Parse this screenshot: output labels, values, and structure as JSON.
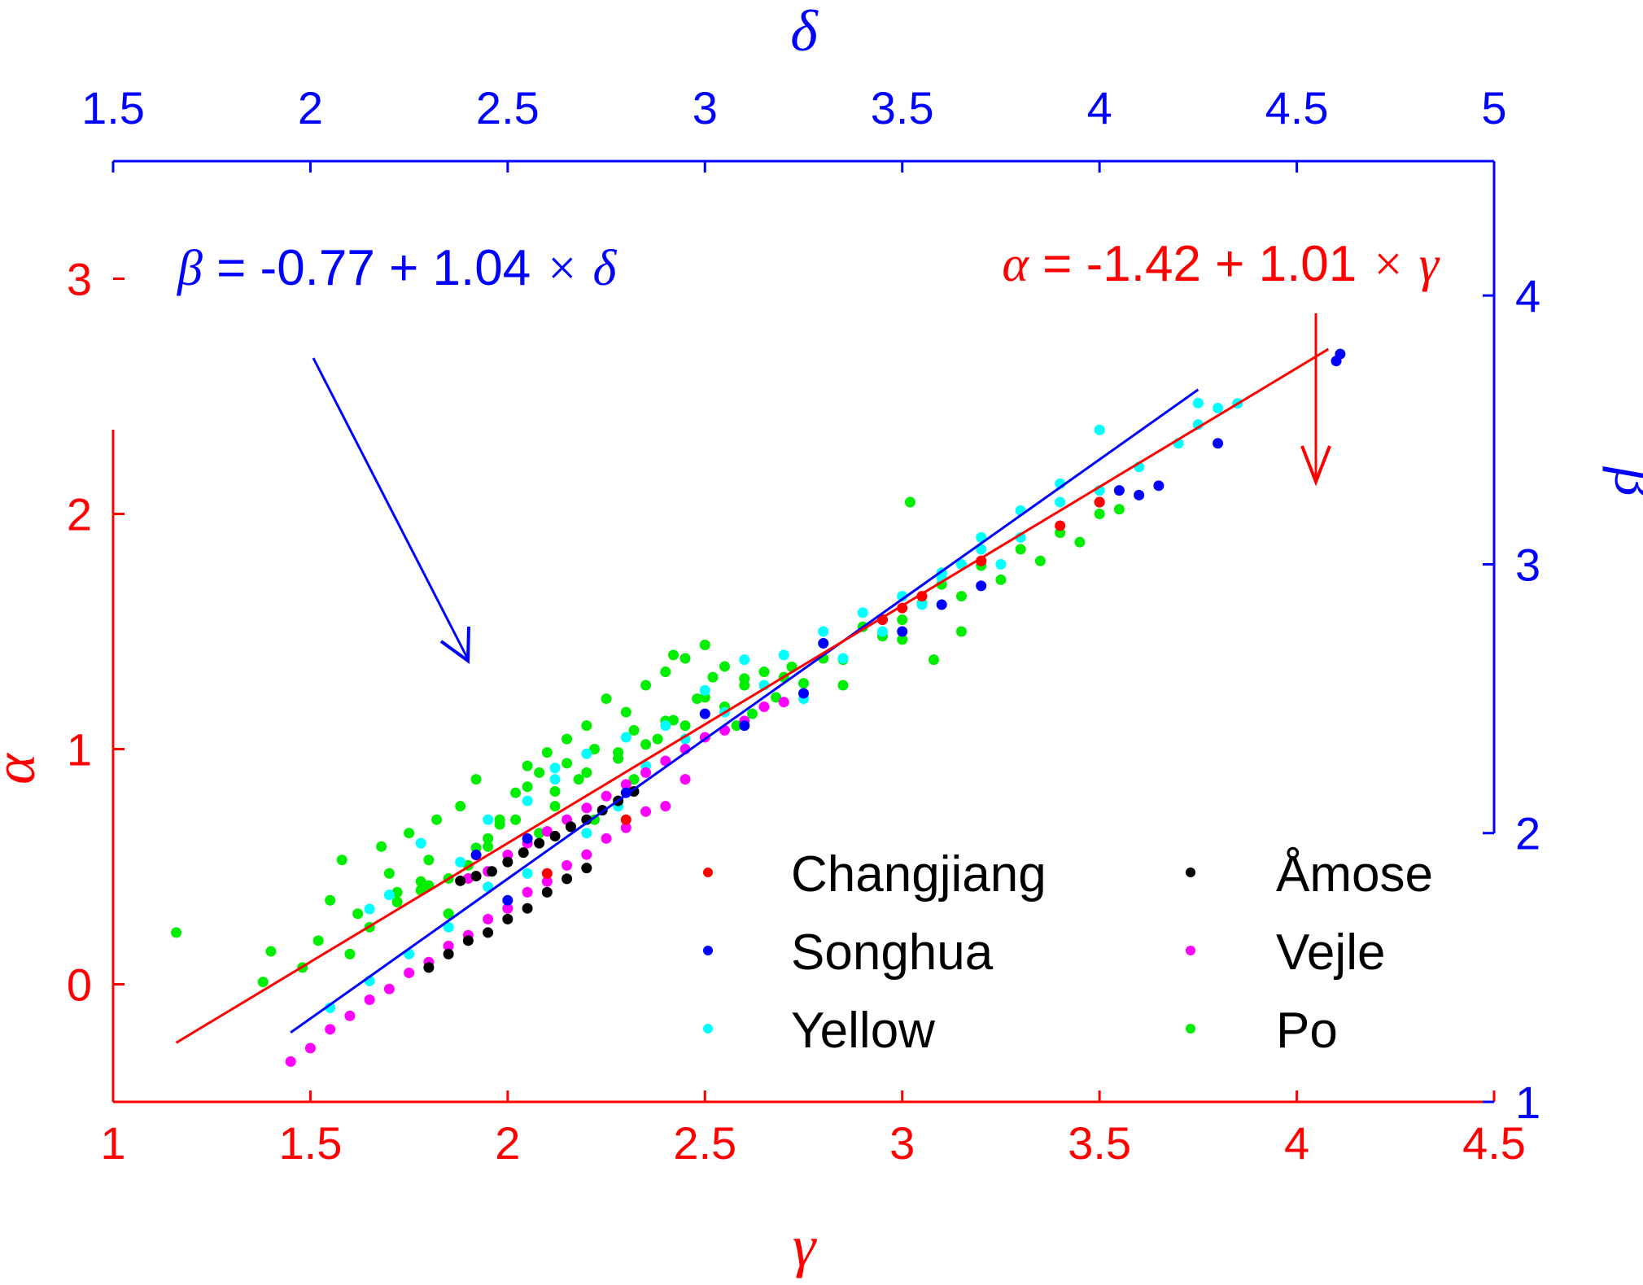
{
  "chart_data": {
    "type": "scatter",
    "colors": {
      "bottom_axis": "#ff0000",
      "top_axis": "#0000ff",
      "legend_text": "#000000"
    },
    "x_bottom": {
      "label": "γ",
      "range": [
        1,
        4.5
      ],
      "ticks": [
        1,
        1.5,
        2,
        2.5,
        3,
        3.5,
        4,
        4.5
      ],
      "tick_labels": [
        "1",
        "1.5",
        "2",
        "2.5",
        "3",
        "3.5",
        "4",
        "4.5"
      ]
    },
    "y_left": {
      "label": "α",
      "range": [
        -0.5,
        3.5
      ],
      "ticks": [
        0,
        1,
        2,
        3
      ],
      "tick_labels": [
        "0",
        "1",
        "2",
        "3"
      ]
    },
    "x_top": {
      "label": "δ",
      "range": [
        1.5,
        5
      ],
      "ticks": [
        1.5,
        2,
        2.5,
        3,
        3.5,
        4,
        4.5,
        5
      ],
      "tick_labels": [
        "1.5",
        "2",
        "2.5",
        "3",
        "3.5",
        "4",
        "4.5",
        "5"
      ]
    },
    "y_right": {
      "label": "β",
      "range": [
        1,
        4.5
      ],
      "ticks": [
        1,
        2,
        3,
        4
      ],
      "tick_labels": [
        "1",
        "2",
        "3",
        "4"
      ]
    },
    "fits": [
      {
        "axes": "top-right",
        "equation_parts": {
          "lhs": "β",
          "mid": " = -0.77 + 1.04 ",
          "times": "×",
          "var": "δ"
        },
        "intercept": -0.77,
        "slope": 1.04,
        "x_range": [
          1.95,
          4.25
        ],
        "color": "#0000ff"
      },
      {
        "axes": "bottom-left",
        "equation_parts": {
          "lhs": "α",
          "mid": " = -1.42 + 1.01 ",
          "times": "×",
          "var": "γ"
        },
        "intercept": -1.42,
        "slope": 1.01,
        "x_range": [
          1.16,
          4.08
        ],
        "color": "#ff0000"
      }
    ],
    "legend": {
      "placement": "bottom-right",
      "columns": 2,
      "entries": [
        {
          "name": "Changjiang",
          "color": "#ff0000"
        },
        {
          "name": "Songhua",
          "color": "#0000ff"
        },
        {
          "name": "Yellow",
          "color": "#00ffff"
        },
        {
          "name": "Åmose",
          "color": "#000000"
        },
        {
          "name": "Vejle",
          "color": "#ff00ff"
        },
        {
          "name": "Po",
          "color": "#00ee00"
        }
      ]
    },
    "series": [
      {
        "name": "Po",
        "color": "#00ee00",
        "alpha_gamma": [
          [
            1.16,
            0.22
          ],
          [
            1.38,
            0.01
          ],
          [
            1.4,
            0.14
          ],
          [
            1.72,
            0.35
          ],
          [
            1.78,
            0.4
          ],
          [
            1.8,
            0.42
          ],
          [
            1.85,
            0.45
          ],
          [
            1.92,
            0.58
          ],
          [
            1.95,
            0.62
          ],
          [
            1.98,
            0.68
          ],
          [
            2.02,
            0.7
          ],
          [
            2.05,
            0.84
          ],
          [
            2.08,
            0.9
          ],
          [
            2.12,
            0.82
          ],
          [
            2.15,
            0.94
          ],
          [
            2.2,
            0.9
          ],
          [
            2.22,
            1.0
          ],
          [
            2.28,
            0.96
          ],
          [
            2.32,
            1.08
          ],
          [
            2.35,
            1.02
          ],
          [
            2.4,
            1.12
          ],
          [
            2.42,
            1.4
          ],
          [
            2.45,
            1.1
          ],
          [
            2.5,
            1.22
          ],
          [
            2.55,
            1.18
          ],
          [
            2.6,
            1.3
          ],
          [
            2.62,
            1.15
          ],
          [
            2.68,
            1.22
          ],
          [
            2.72,
            1.35
          ],
          [
            2.75,
            1.28
          ],
          [
            2.8,
            1.45
          ],
          [
            2.85,
            1.38
          ],
          [
            2.9,
            1.52
          ],
          [
            2.95,
            1.48
          ],
          [
            3.0,
            1.55
          ],
          [
            3.02,
            2.05
          ],
          [
            3.05,
            1.62
          ],
          [
            3.08,
            1.38
          ],
          [
            3.1,
            1.7
          ],
          [
            3.15,
            1.65
          ],
          [
            3.2,
            1.78
          ],
          [
            3.25,
            1.72
          ],
          [
            3.3,
            1.85
          ],
          [
            3.35,
            1.8
          ],
          [
            3.4,
            1.92
          ],
          [
            3.45,
            1.88
          ],
          [
            3.5,
            2.0
          ],
          [
            3.55,
            2.02
          ]
        ],
        "beta_delta": [
          [
            1.98,
            1.5
          ],
          [
            2.02,
            1.6
          ],
          [
            2.05,
            1.75
          ],
          [
            2.08,
            1.9
          ],
          [
            2.1,
            1.55
          ],
          [
            2.12,
            1.7
          ],
          [
            2.15,
            1.65
          ],
          [
            2.18,
            1.95
          ],
          [
            2.2,
            1.85
          ],
          [
            2.22,
            1.78
          ],
          [
            2.25,
            2.0
          ],
          [
            2.28,
            1.82
          ],
          [
            2.3,
            1.9
          ],
          [
            2.32,
            2.05
          ],
          [
            2.35,
            1.7
          ],
          [
            2.38,
            2.1
          ],
          [
            2.4,
            1.88
          ],
          [
            2.42,
            2.2
          ],
          [
            2.45,
            1.95
          ],
          [
            2.48,
            2.05
          ],
          [
            2.5,
            1.72
          ],
          [
            2.52,
            2.15
          ],
          [
            2.55,
            2.25
          ],
          [
            2.58,
            2.0
          ],
          [
            2.6,
            2.3
          ],
          [
            2.62,
            2.1
          ],
          [
            2.65,
            2.35
          ],
          [
            2.68,
            2.2
          ],
          [
            2.7,
            2.4
          ],
          [
            2.72,
            2.05
          ],
          [
            2.75,
            2.5
          ],
          [
            2.78,
            2.3
          ],
          [
            2.8,
            2.45
          ],
          [
            2.82,
            2.2
          ],
          [
            2.85,
            2.55
          ],
          [
            2.88,
            2.35
          ],
          [
            2.9,
            2.6
          ],
          [
            2.92,
            2.42
          ],
          [
            2.95,
            2.65
          ],
          [
            2.98,
            2.5
          ],
          [
            3.0,
            2.7
          ],
          [
            3.02,
            2.58
          ],
          [
            3.05,
            2.62
          ],
          [
            3.08,
            2.4
          ],
          [
            3.1,
            2.55
          ],
          [
            3.15,
            2.6
          ],
          [
            3.2,
            2.58
          ],
          [
            3.3,
            2.65
          ],
          [
            3.35,
            2.55
          ],
          [
            3.5,
            2.72
          ],
          [
            3.65,
            2.75
          ]
        ]
      },
      {
        "name": "Yellow",
        "color": "#00ffff",
        "alpha_gamma": [
          [
            1.65,
            0.32
          ],
          [
            1.7,
            0.38
          ],
          [
            1.78,
            0.6
          ],
          [
            1.88,
            0.52
          ],
          [
            1.95,
            0.7
          ],
          [
            2.05,
            0.78
          ],
          [
            2.12,
            0.92
          ],
          [
            2.2,
            0.98
          ],
          [
            2.3,
            1.05
          ],
          [
            2.4,
            1.1
          ],
          [
            2.5,
            1.25
          ],
          [
            2.6,
            1.38
          ],
          [
            2.7,
            1.4
          ],
          [
            2.8,
            1.5
          ],
          [
            2.9,
            1.58
          ],
          [
            3.0,
            1.65
          ],
          [
            3.1,
            1.75
          ],
          [
            3.2,
            1.85
          ],
          [
            3.3,
            1.9
          ],
          [
            3.4,
            2.05
          ],
          [
            3.5,
            2.1
          ],
          [
            3.6,
            2.2
          ],
          [
            3.7,
            2.3
          ],
          [
            3.75,
            2.38
          ],
          [
            3.8,
            2.45
          ],
          [
            3.85,
            2.47
          ]
        ],
        "beta_delta": [
          [
            2.05,
            1.35
          ],
          [
            2.15,
            1.45
          ],
          [
            2.25,
            1.55
          ],
          [
            2.35,
            1.65
          ],
          [
            2.45,
            1.8
          ],
          [
            2.55,
            1.85
          ],
          [
            2.62,
            2.2
          ],
          [
            2.7,
            2.0
          ],
          [
            2.78,
            2.1
          ],
          [
            2.85,
            2.25
          ],
          [
            2.95,
            2.35
          ],
          [
            3.05,
            2.45
          ],
          [
            3.15,
            2.55
          ],
          [
            3.25,
            2.5
          ],
          [
            3.35,
            2.65
          ],
          [
            3.45,
            2.75
          ],
          [
            3.55,
            2.85
          ],
          [
            3.6,
            2.95
          ],
          [
            3.65,
            3.0
          ],
          [
            3.7,
            3.1
          ],
          [
            3.75,
            3.0
          ],
          [
            3.8,
            3.2
          ],
          [
            3.9,
            3.3
          ],
          [
            4.0,
            3.5
          ],
          [
            4.25,
            3.6
          ]
        ]
      },
      {
        "name": "Vejle",
        "color": "#ff00ff",
        "alpha_gamma": [
          [
            1.9,
            0.45
          ],
          [
            1.95,
            0.48
          ],
          [
            2.0,
            0.55
          ],
          [
            2.05,
            0.6
          ],
          [
            2.1,
            0.65
          ],
          [
            2.15,
            0.7
          ],
          [
            2.2,
            0.75
          ],
          [
            2.25,
            0.8
          ],
          [
            2.3,
            0.85
          ],
          [
            2.35,
            0.9
          ],
          [
            2.4,
            0.95
          ],
          [
            2.45,
            1.0
          ],
          [
            2.5,
            1.05
          ],
          [
            2.55,
            1.08
          ],
          [
            2.6,
            1.12
          ],
          [
            2.65,
            1.18
          ],
          [
            2.7,
            1.2
          ]
        ],
        "beta_delta": [
          [
            1.95,
            1.15
          ],
          [
            2.0,
            1.2
          ],
          [
            2.05,
            1.27
          ],
          [
            2.1,
            1.32
          ],
          [
            2.15,
            1.38
          ],
          [
            2.2,
            1.42
          ],
          [
            2.25,
            1.48
          ],
          [
            2.3,
            1.52
          ],
          [
            2.35,
            1.58
          ],
          [
            2.4,
            1.62
          ],
          [
            2.45,
            1.68
          ],
          [
            2.5,
            1.72
          ],
          [
            2.55,
            1.78
          ],
          [
            2.6,
            1.82
          ],
          [
            2.65,
            1.88
          ],
          [
            2.7,
            1.92
          ],
          [
            2.75,
            1.98
          ],
          [
            2.8,
            2.02
          ],
          [
            2.85,
            2.08
          ],
          [
            2.9,
            2.1
          ],
          [
            2.95,
            2.2
          ]
        ]
      },
      {
        "name": "Åmose",
        "color": "#000000",
        "alpha_gamma": [
          [
            1.88,
            0.44
          ],
          [
            1.92,
            0.46
          ],
          [
            1.96,
            0.48
          ],
          [
            2.0,
            0.52
          ],
          [
            2.04,
            0.56
          ],
          [
            2.08,
            0.6
          ],
          [
            2.12,
            0.63
          ],
          [
            2.16,
            0.67
          ],
          [
            2.2,
            0.7
          ],
          [
            2.24,
            0.74
          ],
          [
            2.28,
            0.78
          ],
          [
            2.32,
            0.82
          ]
        ],
        "beta_delta": [
          [
            2.3,
            1.5
          ],
          [
            2.35,
            1.55
          ],
          [
            2.4,
            1.6
          ],
          [
            2.45,
            1.63
          ],
          [
            2.5,
            1.68
          ],
          [
            2.55,
            1.72
          ],
          [
            2.6,
            1.78
          ],
          [
            2.65,
            1.83
          ],
          [
            2.7,
            1.87
          ]
        ]
      },
      {
        "name": "Songhua",
        "color": "#0000ff",
        "alpha_gamma": [
          [
            1.92,
            0.55
          ],
          [
            2.05,
            0.62
          ],
          [
            2.5,
            1.15
          ],
          [
            2.8,
            1.45
          ],
          [
            2.95,
            1.55
          ],
          [
            3.2,
            1.8
          ],
          [
            3.5,
            2.05
          ],
          [
            3.55,
            2.1
          ],
          [
            3.6,
            2.08
          ],
          [
            3.65,
            2.12
          ],
          [
            3.8,
            2.3
          ],
          [
            4.1,
            2.65
          ],
          [
            4.11,
            2.68
          ]
        ],
        "beta_delta": [
          [
            2.5,
            1.75
          ],
          [
            2.8,
            2.15
          ],
          [
            3.1,
            2.4
          ],
          [
            3.25,
            2.52
          ],
          [
            3.5,
            2.75
          ],
          [
            3.6,
            2.85
          ],
          [
            3.7,
            2.92
          ]
        ]
      },
      {
        "name": "Changjiang",
        "color": "#ff0000",
        "alpha_gamma": [
          [
            2.95,
            1.55
          ],
          [
            3.0,
            1.6
          ],
          [
            3.05,
            1.65
          ],
          [
            3.2,
            1.8
          ],
          [
            3.4,
            1.95
          ],
          [
            3.5,
            2.05
          ]
        ],
        "beta_delta": [
          [
            2.6,
            1.85
          ],
          [
            2.8,
            2.05
          ]
        ]
      }
    ]
  }
}
